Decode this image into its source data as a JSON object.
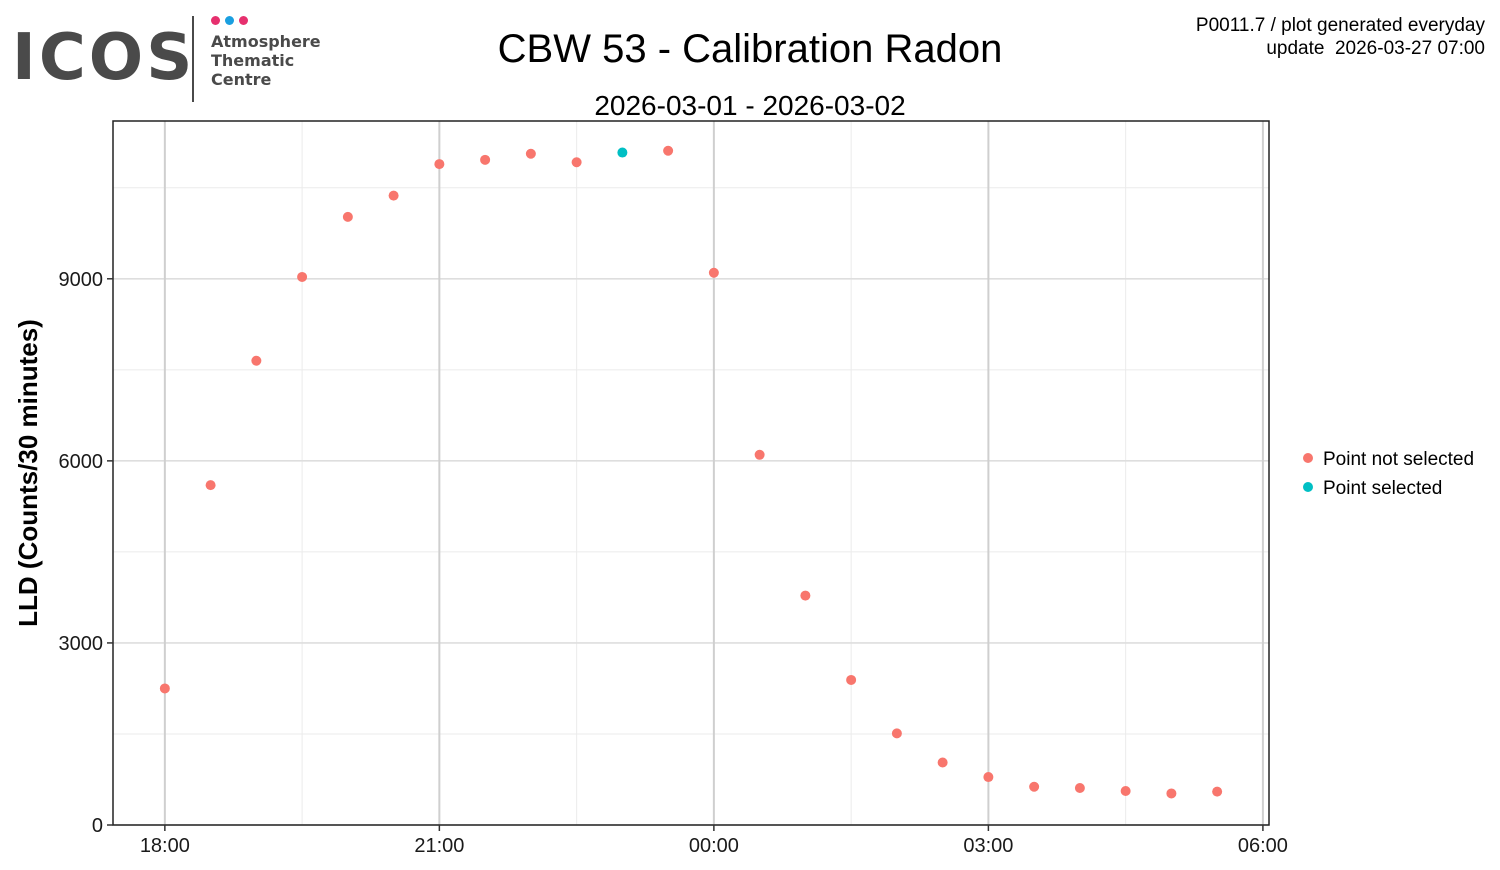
{
  "logo": {
    "word": "ICOS",
    "lines": [
      "Atmosphere",
      "Thematic",
      "Centre"
    ],
    "dot_colors": [
      "#e6306e",
      "#1a9fe0",
      "#e6306e"
    ],
    "text_color": "#4a4a4a"
  },
  "header": {
    "title": "CBW 53 - Calibration Radon",
    "subtitle": "2026-03-01 - 2026-03-02",
    "meta_line1": "P0011.7 / plot generated everyday",
    "meta_line2": "update  2026-03-27 07:00"
  },
  "chart_data": {
    "type": "scatter",
    "title": "CBW 53 - Calibration Radon",
    "subtitle": "2026-03-01 - 2026-03-02",
    "xlabel": "",
    "ylabel": "LLD (Counts/30 minutes)",
    "x_ticks": [
      "18:00",
      "21:00",
      "00:00",
      "03:00",
      "06:00"
    ],
    "y_ticks": [
      0,
      3000,
      6000,
      9000
    ],
    "ylim": [
      0,
      11600
    ],
    "xlim": [
      "2026-03-01 17:26",
      "2026-03-02 06:04"
    ],
    "grid": true,
    "legend_position": "right",
    "series": [
      {
        "name": "Point not selected",
        "color": "#f8766d",
        "points": [
          {
            "x": "2026-03-01 18:00",
            "y": 2250
          },
          {
            "x": "2026-03-01 18:30",
            "y": 5600
          },
          {
            "x": "2026-03-01 19:00",
            "y": 7650
          },
          {
            "x": "2026-03-01 19:30",
            "y": 9030
          },
          {
            "x": "2026-03-01 20:00",
            "y": 10020
          },
          {
            "x": "2026-03-01 20:30",
            "y": 10370
          },
          {
            "x": "2026-03-01 21:00",
            "y": 10890
          },
          {
            "x": "2026-03-01 21:30",
            "y": 10960
          },
          {
            "x": "2026-03-01 22:00",
            "y": 11060
          },
          {
            "x": "2026-03-01 22:30",
            "y": 10920
          },
          {
            "x": "2026-03-01 23:30",
            "y": 11110
          },
          {
            "x": "2026-03-02 00:00",
            "y": 9100
          },
          {
            "x": "2026-03-02 00:30",
            "y": 6100
          },
          {
            "x": "2026-03-02 01:00",
            "y": 3780
          },
          {
            "x": "2026-03-02 01:30",
            "y": 2390
          },
          {
            "x": "2026-03-02 02:00",
            "y": 1510
          },
          {
            "x": "2026-03-02 02:30",
            "y": 1030
          },
          {
            "x": "2026-03-02 03:00",
            "y": 790
          },
          {
            "x": "2026-03-02 03:30",
            "y": 630
          },
          {
            "x": "2026-03-02 04:00",
            "y": 610
          },
          {
            "x": "2026-03-02 04:30",
            "y": 560
          },
          {
            "x": "2026-03-02 05:00",
            "y": 520
          },
          {
            "x": "2026-03-02 05:30",
            "y": 550
          }
        ]
      },
      {
        "name": "Point selected",
        "color": "#00bfc4",
        "points": [
          {
            "x": "2026-03-01 23:00",
            "y": 11080
          }
        ]
      }
    ]
  }
}
